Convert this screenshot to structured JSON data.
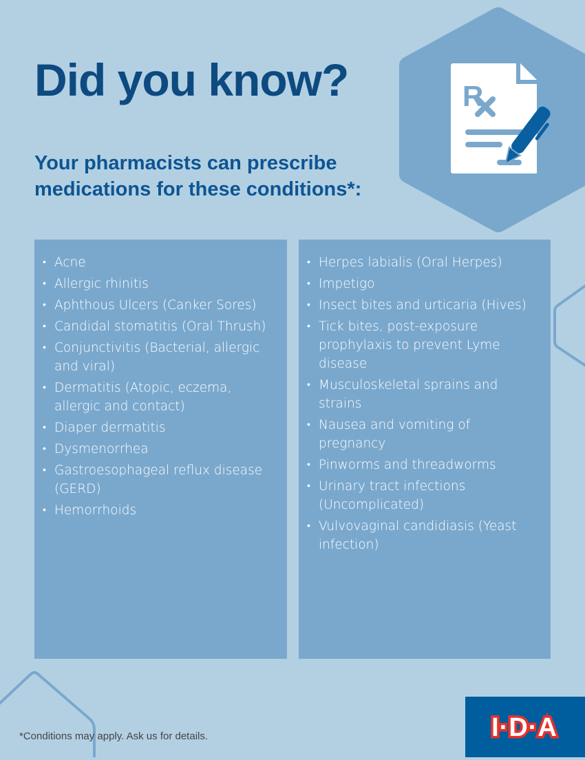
{
  "header": {
    "title": "Did you know?",
    "subtitle": "Your pharmacists can prescribe medications for these conditions*:"
  },
  "icon": "prescription-pen-icon",
  "conditions_left": [
    "Acne",
    "Allergic rhinitis",
    "Aphthous Ulcers (Canker Sores)",
    "Candidal stomatitis (Oral Thrush)",
    "Conjunctivitis (Bacterial, allergic and viral)",
    "Dermatitis (Atopic, eczema, allergic and contact)",
    "Diaper dermatitis",
    "Dysmenorrhea",
    "Gastroesophageal reflux disease (GERD)",
    "Hemorrhoids"
  ],
  "conditions_right": [
    "Herpes labialis (Oral Herpes)",
    "Impetigo",
    "Insect bites and urticaria (Hives)",
    "Tick bites, post-exposure prophylaxis to prevent Lyme disease",
    "Musculoskeletal sprains and strains",
    "Nausea and vomiting of pregnancy",
    "Pinworms and threadworms",
    "Urinary tract infections (Uncomplicated)",
    "Vulvovaginal candidiasis (Yeast infection)"
  ],
  "footnote": "*Conditions may apply. Ask us for details.",
  "logo": {
    "text": "I·D·A",
    "colors": {
      "background": "#005d9e",
      "outline": "#e8322b"
    }
  },
  "colors": {
    "background": "#b3d0e3",
    "panel": "#7aa8cd",
    "title": "#0d4a80"
  }
}
